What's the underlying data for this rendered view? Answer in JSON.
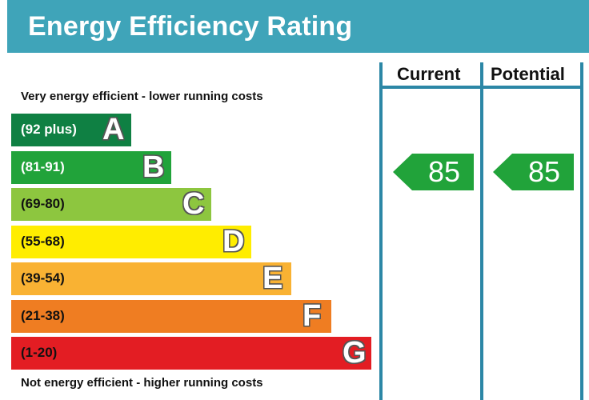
{
  "title": "Energy Efficiency Rating",
  "top_caption": "Very energy efficient - lower running costs",
  "bottom_caption": "Not energy efficient - higher running costs",
  "columns": {
    "current": "Current",
    "potential": "Potential"
  },
  "chart_data": {
    "type": "bar",
    "title": "Energy Efficiency Rating",
    "bands": [
      {
        "letter": "A",
        "range": "(92 plus)",
        "color": "#0f8043",
        "text_color": "#ffffff"
      },
      {
        "letter": "B",
        "range": "(81-91)",
        "color": "#21a33a",
        "text_color": "#ffffff"
      },
      {
        "letter": "C",
        "range": "(69-80)",
        "color": "#8dc63f",
        "text_color": "#111111"
      },
      {
        "letter": "D",
        "range": "(55-68)",
        "color": "#ffed00",
        "text_color": "#111111"
      },
      {
        "letter": "E",
        "range": "(39-54)",
        "color": "#f9b233",
        "text_color": "#111111"
      },
      {
        "letter": "F",
        "range": "(21-38)",
        "color": "#ef7d22",
        "text_color": "#111111"
      },
      {
        "letter": "G",
        "range": "(1-20)",
        "color": "#e31d23",
        "text_color": "#111111"
      }
    ],
    "current": {
      "value": "85",
      "band": "B",
      "color": "#21a33a"
    },
    "potential": {
      "value": "85",
      "band": "B",
      "color": "#21a33a"
    }
  }
}
